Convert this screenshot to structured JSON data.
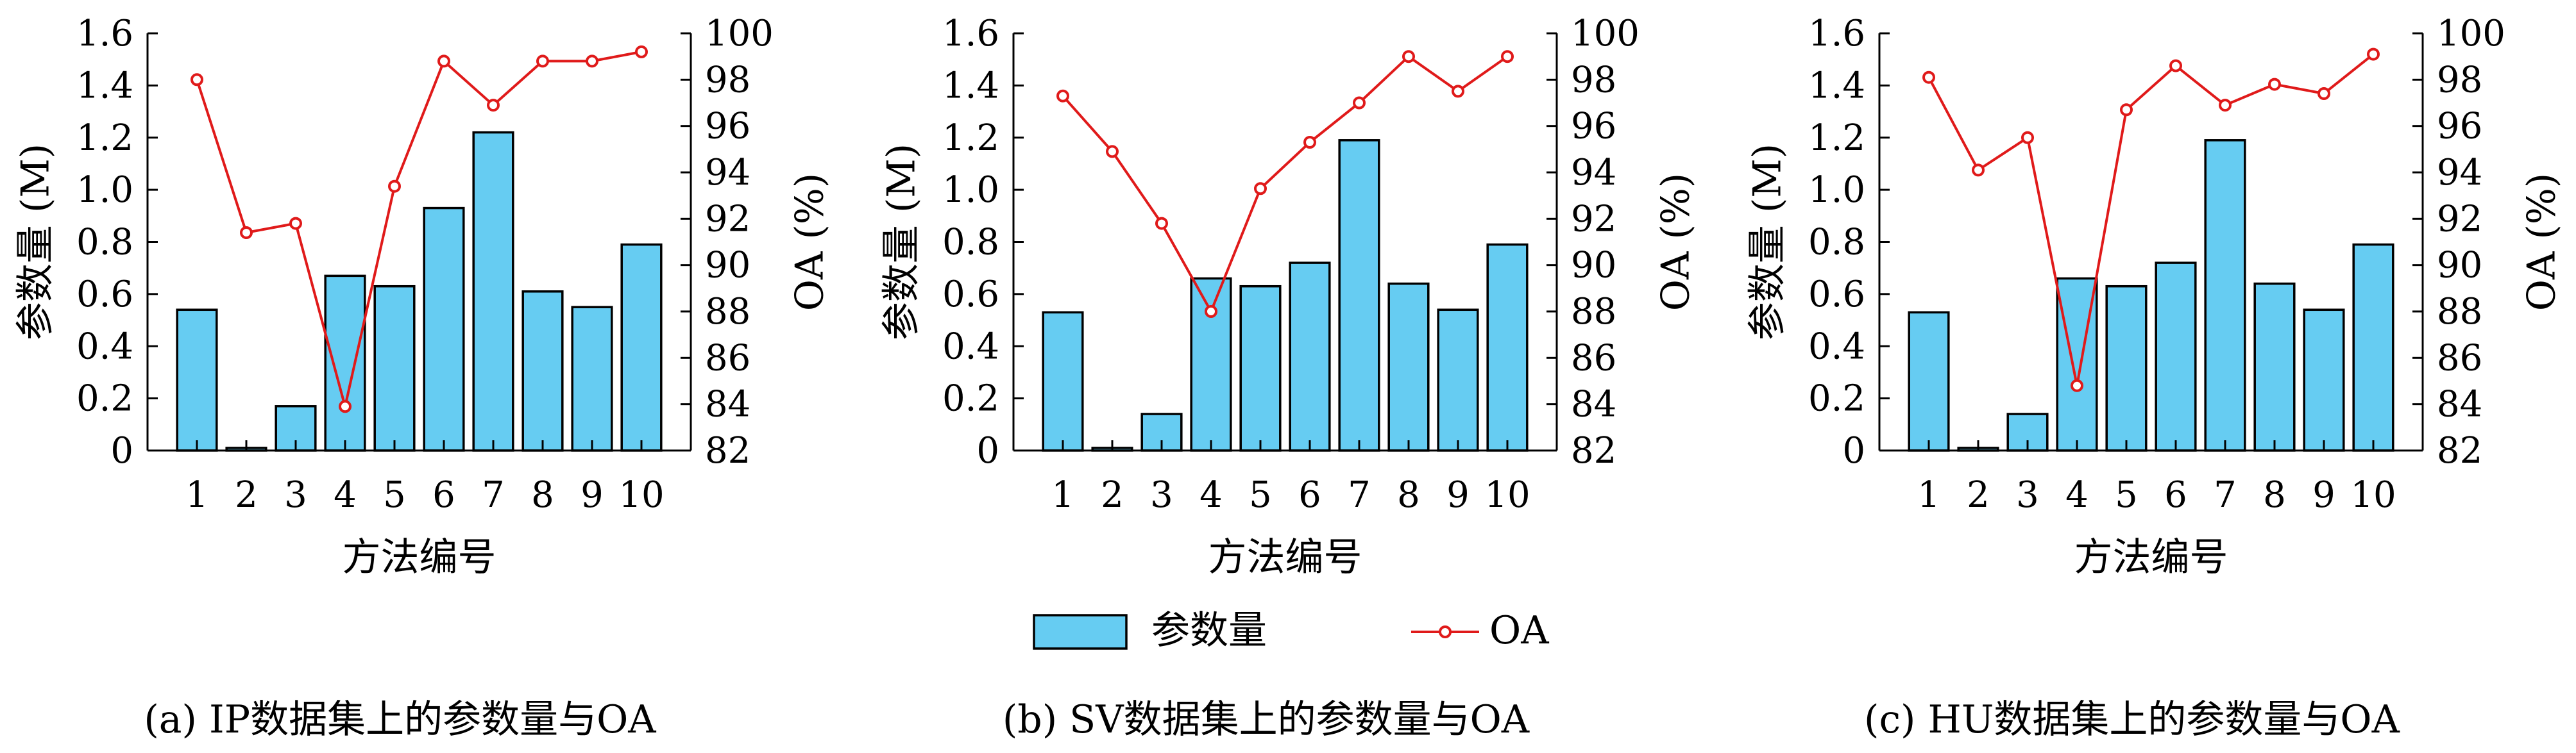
{
  "colors": {
    "bar_fill": "#66ccf2",
    "bar_stroke": "#000000",
    "line": "#e01a1a",
    "axis": "#000000"
  },
  "legend": {
    "bar_label": "参数量",
    "line_label": "OA",
    "placement": "bottom-center"
  },
  "chart_data": [
    {
      "type": "bar+line",
      "caption": "(a) IP数据集上的参数量与OA",
      "xlabel": "方法编号",
      "ylabel_left": "参数量 (M)",
      "ylabel_right": "OA (%)",
      "categories": [
        "1",
        "2",
        "3",
        "4",
        "5",
        "6",
        "7",
        "8",
        "9",
        "10"
      ],
      "left_ylim": [
        0,
        1.6
      ],
      "left_ticks": [
        "0",
        "0.2",
        "0.4",
        "0.6",
        "0.8",
        "1.0",
        "1.2",
        "1.4",
        "1.6"
      ],
      "right_ylim": [
        82,
        100
      ],
      "right_ticks": [
        "82",
        "84",
        "86",
        "88",
        "90",
        "92",
        "94",
        "96",
        "98",
        "100"
      ],
      "series": [
        {
          "name": "参数量",
          "type": "bar",
          "axis": "left",
          "values": [
            0.54,
            0.01,
            0.17,
            0.67,
            0.63,
            0.93,
            1.22,
            0.61,
            0.55,
            0.79
          ]
        },
        {
          "name": "OA",
          "type": "line",
          "axis": "right",
          "values": [
            98.0,
            91.4,
            91.8,
            83.9,
            93.4,
            98.8,
            96.9,
            98.8,
            98.8,
            99.2
          ]
        }
      ]
    },
    {
      "type": "bar+line",
      "caption": "(b) SV数据集上的参数量与OA",
      "xlabel": "方法编号",
      "ylabel_left": "参数量 (M)",
      "ylabel_right": "OA (%)",
      "categories": [
        "1",
        "2",
        "3",
        "4",
        "5",
        "6",
        "7",
        "8",
        "9",
        "10"
      ],
      "left_ylim": [
        0,
        1.6
      ],
      "left_ticks": [
        "0",
        "0.2",
        "0.4",
        "0.6",
        "0.8",
        "1.0",
        "1.2",
        "1.4",
        "1.6"
      ],
      "right_ylim": [
        82,
        100
      ],
      "right_ticks": [
        "82",
        "84",
        "86",
        "88",
        "90",
        "92",
        "94",
        "96",
        "98",
        "100"
      ],
      "series": [
        {
          "name": "参数量",
          "type": "bar",
          "axis": "left",
          "values": [
            0.53,
            0.01,
            0.14,
            0.66,
            0.63,
            0.72,
            1.19,
            0.64,
            0.54,
            0.79
          ]
        },
        {
          "name": "OA",
          "type": "line",
          "axis": "right",
          "values": [
            97.3,
            94.9,
            91.8,
            88.0,
            93.3,
            95.3,
            97.0,
            99.0,
            97.5,
            99.0
          ]
        }
      ]
    },
    {
      "type": "bar+line",
      "caption": "(c) HU数据集上的参数量与OA",
      "xlabel": "方法编号",
      "ylabel_left": "参数量 (M)",
      "ylabel_right": "OA (%)",
      "categories": [
        "1",
        "2",
        "3",
        "4",
        "5",
        "6",
        "7",
        "8",
        "9",
        "10"
      ],
      "left_ylim": [
        0,
        1.6
      ],
      "left_ticks": [
        "0",
        "0.2",
        "0.4",
        "0.6",
        "0.8",
        "1.0",
        "1.2",
        "1.4",
        "1.6"
      ],
      "right_ylim": [
        82,
        100
      ],
      "right_ticks": [
        "82",
        "84",
        "86",
        "88",
        "90",
        "92",
        "94",
        "96",
        "98",
        "100"
      ],
      "series": [
        {
          "name": "参数量",
          "type": "bar",
          "axis": "left",
          "values": [
            0.53,
            0.01,
            0.14,
            0.66,
            0.63,
            0.72,
            1.19,
            0.64,
            0.54,
            0.79
          ]
        },
        {
          "name": "OA",
          "type": "line",
          "axis": "right",
          "values": [
            98.1,
            94.1,
            95.5,
            84.8,
            96.7,
            98.6,
            96.9,
            97.8,
            97.4,
            99.1
          ]
        }
      ]
    }
  ]
}
